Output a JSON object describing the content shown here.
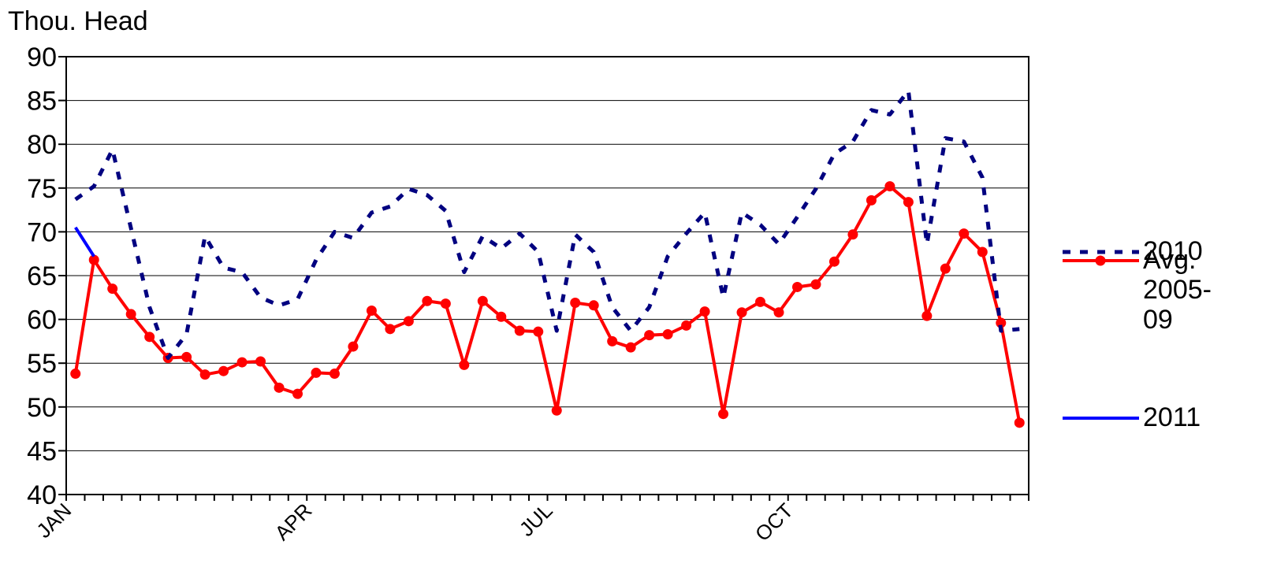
{
  "chart_data": {
    "type": "line",
    "y_label": "Thou. Head",
    "categories": [
      "JAN",
      null,
      null,
      null,
      null,
      null,
      null,
      null,
      null,
      null,
      null,
      null,
      null,
      "APR",
      null,
      null,
      null,
      null,
      null,
      null,
      null,
      null,
      null,
      null,
      null,
      null,
      "JUL",
      null,
      null,
      null,
      null,
      null,
      null,
      null,
      null,
      null,
      null,
      null,
      null,
      "OCT",
      null,
      null,
      null,
      null,
      null,
      null,
      null,
      null,
      null,
      null,
      null,
      null
    ],
    "series": [
      {
        "name": "Avg. 2005-09",
        "color": "#ff0000",
        "style": "solid-marker",
        "values": [
          53.8,
          66.8,
          63.5,
          60.6,
          58.0,
          55.6,
          55.7,
          53.7,
          54.1,
          55.1,
          55.2,
          52.2,
          51.5,
          53.9,
          53.8,
          56.9,
          61.0,
          58.9,
          59.8,
          62.1,
          61.8,
          54.8,
          62.1,
          60.3,
          58.7,
          58.6,
          49.6,
          61.9,
          61.6,
          57.5,
          56.8,
          58.2,
          58.3,
          59.3,
          60.9,
          49.2,
          60.8,
          62.0,
          60.8,
          63.7,
          64.0,
          66.6,
          69.7,
          73.6,
          75.2,
          73.4,
          60.4,
          65.8,
          69.8,
          67.7,
          59.6,
          48.2
        ]
      },
      {
        "name": "2010",
        "color": "#000080",
        "style": "dashed",
        "values": [
          73.7,
          75.2,
          79.4,
          70.4,
          61.4,
          55.6,
          58.3,
          69.5,
          65.9,
          65.4,
          62.5,
          61.6,
          62.3,
          66.8,
          70.0,
          69.3,
          72.2,
          72.9,
          74.9,
          74.2,
          72.4,
          65.4,
          69.5,
          68.1,
          69.8,
          67.7,
          58.7,
          69.7,
          67.7,
          61.4,
          58.7,
          61.4,
          67.2,
          69.8,
          72.2,
          62.5,
          72.2,
          70.8,
          68.6,
          71.7,
          74.9,
          78.9,
          80.3,
          83.9,
          83.4,
          86.1,
          68.6,
          80.7,
          80.3,
          76.2,
          58.7,
          58.9
        ]
      },
      {
        "name": "2011",
        "color": "#0000ff",
        "style": "solid",
        "values": [
          70.5,
          67.2,
          null,
          null,
          null,
          null,
          null,
          null,
          null,
          null,
          null,
          null,
          null,
          null,
          null,
          null,
          null,
          null,
          null,
          null,
          null,
          null,
          null,
          null,
          null,
          null,
          null,
          null,
          null,
          null,
          null,
          null,
          null,
          null,
          null,
          null,
          null,
          null,
          null,
          null,
          null,
          null,
          null,
          null,
          null,
          null,
          null,
          null,
          null,
          null,
          null,
          null
        ]
      }
    ],
    "ylim": [
      40,
      90
    ],
    "yticks": [
      40,
      45,
      50,
      55,
      60,
      65,
      70,
      75,
      80,
      85,
      90
    ],
    "grid": true
  }
}
